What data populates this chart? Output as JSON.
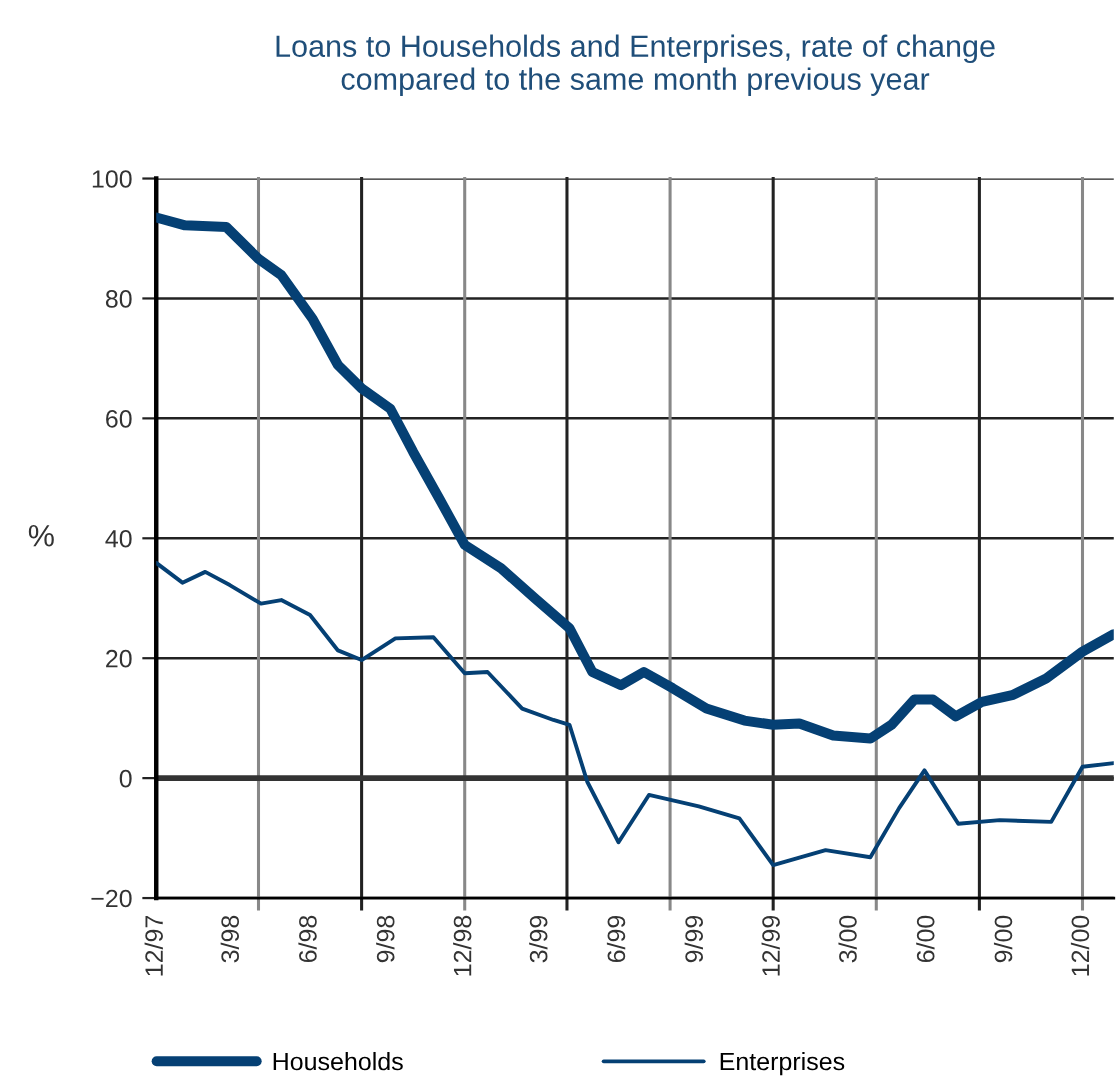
{
  "chart_data": {
    "type": "line",
    "title": "Loans to Households and Enterprises, rate of change\ncompared to the same month previous year",
    "ylabel": "%",
    "x": [
      "1997-12-01",
      "1998-01-04",
      "1998-02-22",
      "1998-04-01",
      "1998-04-28",
      "1998-06-04",
      "1998-07-04",
      "1998-08-01",
      "1998-09-04",
      "1998-10-01",
      "1998-11-01",
      "1998-12-01",
      "1999-01-13",
      "1999-02-22",
      "1999-04-04",
      "1999-05-01",
      "1999-06-04",
      "1999-07-01",
      "1999-08-04",
      "1999-09-13",
      "1999-10-28",
      "1999-12-01",
      "2000-01-01",
      "2000-02-10",
      "2000-03-25",
      "2000-04-19",
      "2000-05-16",
      "2000-06-07",
      "2000-07-04",
      "2000-08-04",
      "2000-09-10",
      "2000-10-19",
      "2000-12-01",
      "2001-01-07"
    ],
    "series": [
      {
        "name": "Households",
        "color": "#054074",
        "values": [
          93.5,
          92.2,
          91.9,
          86.6,
          83.9,
          76.6,
          68.9,
          65,
          61.6,
          54.4,
          46.6,
          38.9,
          35,
          30,
          25,
          17.7,
          15.5,
          17.7,
          15,
          11.6,
          9.6,
          8.9,
          9.1,
          7.1,
          6.6,
          8.9,
          13.1,
          13.1,
          10.3,
          12.7,
          13.9,
          16.6,
          21.1,
          24
        ]
      },
      {
        "name": "Enterprises",
        "color": "#054074",
        "x": [
          "1997-12-01",
          "1998-01-01",
          "1998-01-28",
          "1998-02-26",
          "1998-04-04",
          "1998-04-28",
          "1998-06-01",
          "1998-07-04",
          "1998-08-01",
          "1998-09-10",
          "1998-10-25",
          "1998-12-01",
          "1998-12-28",
          "1999-02-07",
          "1999-03-16",
          "1999-04-04",
          "1999-04-25",
          "1999-06-01",
          "1999-07-07",
          "1999-09-04",
          "1999-10-22",
          "1999-12-01",
          "2000-02-01",
          "2000-03-25",
          "2000-04-28",
          "2000-05-28",
          "2000-07-07",
          "2000-08-25",
          "2000-10-25",
          "2000-12-01",
          "2001-01-07"
        ],
        "values": [
          35.9,
          32.6,
          34.4,
          32.2,
          29.1,
          29.7,
          27.2,
          21.3,
          19.7,
          23.3,
          23.5,
          17.5,
          17.7,
          11.6,
          9.7,
          8.9,
          -0.6,
          -10.7,
          -2.8,
          -4.7,
          -6.7,
          -14.5,
          -12,
          -13.2,
          -5,
          1.3,
          -7.6,
          -7,
          -7.3,
          1.9,
          2.5
        ]
      }
    ],
    "xlim": [
      "1997-12-01",
      "2001-01-07"
    ],
    "xticks": [
      {
        "value": "1997-12",
        "label": "12/97"
      },
      {
        "value": "1998-03",
        "label": "3/98"
      },
      {
        "value": "1998-06",
        "label": "6/98"
      },
      {
        "value": "1998-09",
        "label": "9/98"
      },
      {
        "value": "1998-12",
        "label": "12/98"
      },
      {
        "value": "1999-03",
        "label": "3/99"
      },
      {
        "value": "1999-06",
        "label": "6/99"
      },
      {
        "value": "1999-09",
        "label": "9/99"
      },
      {
        "value": "1999-12",
        "label": "12/99"
      },
      {
        "value": "2000-03",
        "label": "3/00"
      },
      {
        "value": "2000-06",
        "label": "6/00"
      },
      {
        "value": "2000-09",
        "label": "9/00"
      },
      {
        "value": "2000-12",
        "label": "12/00"
      }
    ],
    "ylim": [
      -20,
      100
    ],
    "yticks": [
      {
        "value": -20,
        "label": "−20"
      },
      0,
      20,
      40,
      60,
      80,
      100
    ],
    "grid": "y",
    "ref_lines": [
      {
        "axis": "x",
        "value": "1998-04",
        "color": "#888888"
      },
      {
        "axis": "x",
        "value": "1998-08",
        "color": "#222222"
      },
      {
        "axis": "x",
        "value": "1998-12",
        "color": "#888888"
      },
      {
        "axis": "x",
        "value": "1999-04",
        "color": "#222222"
      },
      {
        "axis": "x",
        "value": "1999-08",
        "color": "#888888"
      },
      {
        "axis": "x",
        "value": "1999-12",
        "color": "#222222"
      },
      {
        "axis": "x",
        "value": "2000-04",
        "color": "#888888"
      },
      {
        "axis": "x",
        "value": "2000-08",
        "color": "#222222"
      },
      {
        "axis": "x",
        "value": "2000-12",
        "color": "#888888"
      },
      {
        "axis": "y",
        "value": 0,
        "color": "#333333"
      }
    ],
    "legend": "bottom",
    "line_style": "solid",
    "marker": "none"
  }
}
